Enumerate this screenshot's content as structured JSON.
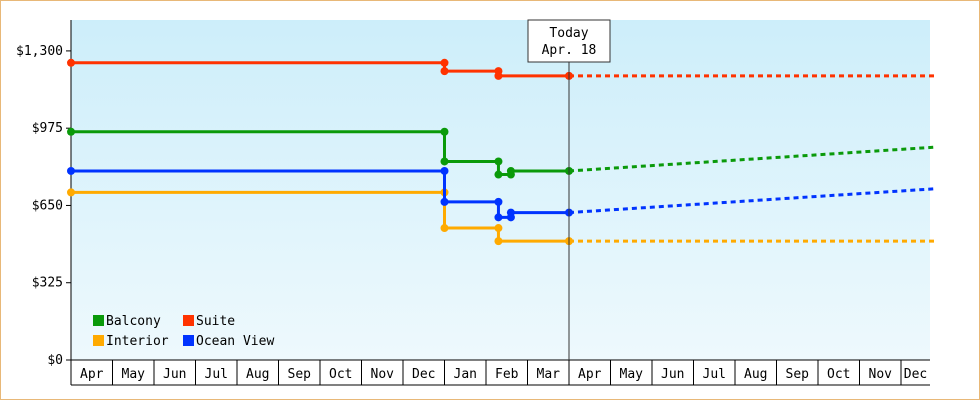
{
  "chart_data": {
    "type": "line",
    "step": true,
    "x_axis": {
      "ticks": [
        "Apr",
        "May",
        "Jun",
        "Jul",
        "Aug",
        "Sep",
        "Oct",
        "Nov",
        "Dec",
        "Jan",
        "Feb",
        "Mar",
        "Apr",
        "May",
        "Jun",
        "Jul",
        "Aug",
        "Sep",
        "Oct",
        "Nov",
        "Dec"
      ]
    },
    "y_axis": {
      "ticks": [
        {
          "value": 0,
          "label": "$0"
        },
        {
          "value": 325,
          "label": "$325"
        },
        {
          "value": 650,
          "label": "$650"
        },
        {
          "value": 975,
          "label": "$975"
        },
        {
          "value": 1300,
          "label": "$1,300"
        }
      ],
      "ylim": [
        0,
        1430
      ]
    },
    "today": {
      "title": "Today",
      "date": "Apr. 18",
      "x": 12.0
    },
    "background_gradient": [
      "#cdeefa",
      "#eef9fd"
    ],
    "legend": {
      "position": "bottom-left"
    },
    "series": [
      {
        "name": "Balcony",
        "color": "#0a9a0a",
        "points": [
          [
            0,
            960
          ],
          [
            9.0,
            960
          ],
          [
            9.0,
            835
          ],
          [
            10.3,
            835
          ],
          [
            10.3,
            780
          ],
          [
            10.6,
            780
          ],
          [
            10.6,
            795
          ],
          [
            12.0,
            795
          ]
        ],
        "markers": [
          [
            0,
            960
          ],
          [
            9.0,
            960
          ],
          [
            9.0,
            835
          ],
          [
            10.3,
            835
          ],
          [
            10.3,
            780
          ],
          [
            10.6,
            780
          ],
          [
            10.6,
            795
          ],
          [
            12.0,
            795
          ]
        ],
        "forecast": [
          [
            12.0,
            795
          ],
          [
            20.8,
            895
          ]
        ]
      },
      {
        "name": "Suite",
        "color": "#ff3300",
        "points": [
          [
            0,
            1250
          ],
          [
            9.0,
            1250
          ],
          [
            9.0,
            1215
          ],
          [
            10.3,
            1215
          ],
          [
            10.3,
            1195
          ],
          [
            12.0,
            1195
          ]
        ],
        "markers": [
          [
            0,
            1250
          ],
          [
            9.0,
            1250
          ],
          [
            9.0,
            1215
          ],
          [
            10.3,
            1215
          ],
          [
            10.3,
            1195
          ],
          [
            12.0,
            1195
          ]
        ],
        "forecast": [
          [
            12.0,
            1195
          ],
          [
            20.8,
            1195
          ]
        ]
      },
      {
        "name": "Interior",
        "color": "#ffaa00",
        "points": [
          [
            0,
            705
          ],
          [
            9.0,
            705
          ],
          [
            9.0,
            555
          ],
          [
            10.3,
            555
          ],
          [
            10.3,
            500
          ],
          [
            12.0,
            500
          ]
        ],
        "markers": [
          [
            0,
            705
          ],
          [
            9.0,
            705
          ],
          [
            9.0,
            555
          ],
          [
            10.3,
            555
          ],
          [
            10.3,
            500
          ],
          [
            12.0,
            500
          ]
        ],
        "forecast": [
          [
            12.0,
            500
          ],
          [
            20.8,
            500
          ]
        ]
      },
      {
        "name": "Ocean View",
        "color": "#0033ff",
        "points": [
          [
            0,
            795
          ],
          [
            9.0,
            795
          ],
          [
            9.0,
            665
          ],
          [
            10.3,
            665
          ],
          [
            10.3,
            600
          ],
          [
            10.6,
            600
          ],
          [
            10.6,
            620
          ],
          [
            12.0,
            620
          ]
        ],
        "markers": [
          [
            0,
            795
          ],
          [
            9.0,
            795
          ],
          [
            9.0,
            665
          ],
          [
            10.3,
            665
          ],
          [
            10.3,
            600
          ],
          [
            10.6,
            600
          ],
          [
            10.6,
            620
          ],
          [
            12.0,
            620
          ]
        ],
        "forecast": [
          [
            12.0,
            620
          ],
          [
            20.8,
            720
          ]
        ]
      }
    ],
    "legend_order": [
      "Balcony",
      "Suite",
      "Interior",
      "Ocean View"
    ]
  }
}
